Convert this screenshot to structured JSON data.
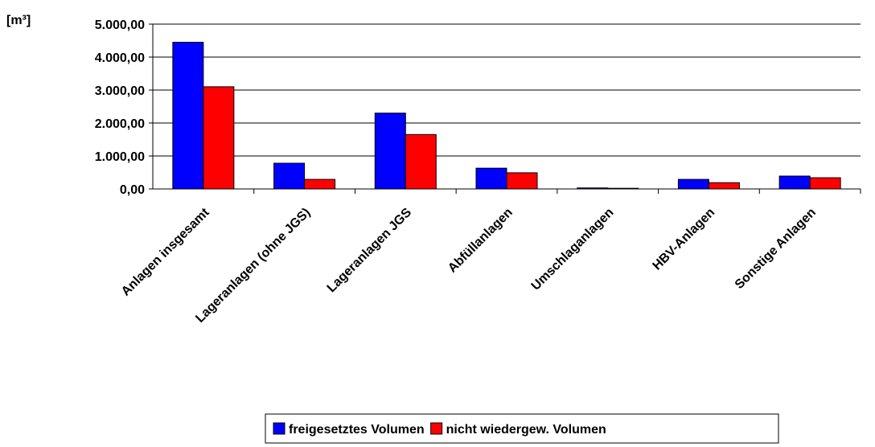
{
  "chart_data": {
    "type": "bar",
    "y_label": "[m³]",
    "categories": [
      "Anlagen insgesamt",
      "Lageranlagen (ohne JGS)",
      "Lageranlagen JGS",
      "Abfüllanlagen",
      "Umschlaganlagen",
      "HBV-Anlagen",
      "Sonstige Anlagen"
    ],
    "series": [
      {
        "name": "freigesetztes Volumen",
        "color": "#0000ff",
        "values": [
          4450,
          780,
          2300,
          630,
          30,
          290,
          390
        ]
      },
      {
        "name": "nicht wiedergew. Volumen",
        "color": "#ff0000",
        "values": [
          3100,
          290,
          1650,
          490,
          20,
          190,
          340
        ]
      }
    ],
    "ylim": [
      0,
      5000
    ],
    "yticks": [
      {
        "value": 0,
        "label": "0,00"
      },
      {
        "value": 1000,
        "label": "1.000,00"
      },
      {
        "value": 2000,
        "label": "2.000,00"
      },
      {
        "value": 3000,
        "label": "3.000,00"
      },
      {
        "value": 4000,
        "label": "4.000,00"
      },
      {
        "value": 5000,
        "label": "5.000,00"
      }
    ],
    "grid": true,
    "legend": "bottom"
  }
}
